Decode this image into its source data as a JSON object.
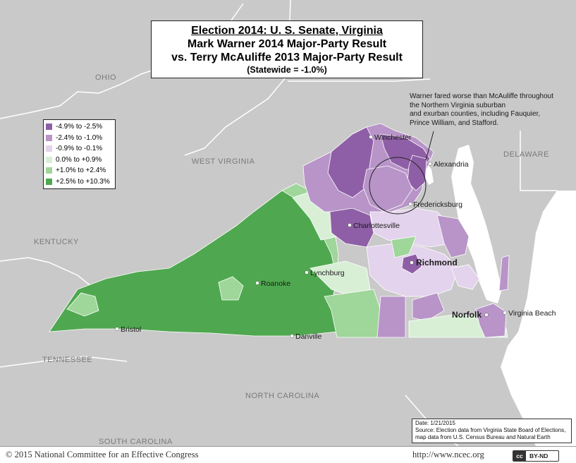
{
  "title": {
    "line1": "Election 2014: U. S. Senate, Virginia",
    "line2": "Mark Warner 2014 Major-Party Result",
    "line3": "vs. Terry McAuliffe 2013 Major-Party Result",
    "line4": "(Statewide = -1.0%)"
  },
  "legend": {
    "items": [
      {
        "label": "-4.9% to -2.5%",
        "color": "#8e5fa6"
      },
      {
        "label": "-2.4% to -1.0%",
        "color": "#b894c8"
      },
      {
        "label": "-0.9% to -0.1%",
        "color": "#e3d3ec"
      },
      {
        "label": "0.0% to +0.9%",
        "color": "#d8efd6"
      },
      {
        "label": "+1.0% to +2.4%",
        "color": "#9fd69a"
      },
      {
        "label": "+2.5% to +10.3%",
        "color": "#4fa84f"
      }
    ]
  },
  "states": {
    "ohio": "OHIO",
    "west_virginia": "WEST VIRGINIA",
    "kentucky": "KENTUCKY",
    "tennessee": "TENNESSEE",
    "north_carolina": "NORTH CAROLINA",
    "south_carolina": "SOUTH CAROLINA",
    "delaware": "DELAWARE"
  },
  "cities": {
    "winchester": "Winchester",
    "alexandria": "Alexandria",
    "fredericksburg": "Fredericksburg",
    "charlottesville": "Charlottesville",
    "richmond": "Richmond",
    "lynchburg": "Lynchburg",
    "roanoke": "Roanoke",
    "bristol": "Bristol",
    "danville": "Danville",
    "norfolk": "Norfolk",
    "virginia_beach": "Virginia Beach"
  },
  "annotation": {
    "line1": "Warner fared worse than McAuliffe throughout",
    "line2": "the Northern Virginia suburban",
    "line3": "and exurban counties, including Fauquier,",
    "line4": "Prince William, and Stafford."
  },
  "source": {
    "date": "Date: 1/21/2015",
    "line1": "Source: Election data from Virginia State Board of Elections,",
    "line2": "map data from U.S. Census Bureau and Natural Earth"
  },
  "footer": {
    "copyright": "© 2015 National Committee for an Effective Congress",
    "url": "http://www.ncec.org",
    "license_icon": "cc",
    "license_text": "BY-ND"
  },
  "colors": {
    "background": "#c9c9c9",
    "water": "#ffffff",
    "border": "#ffffff"
  }
}
